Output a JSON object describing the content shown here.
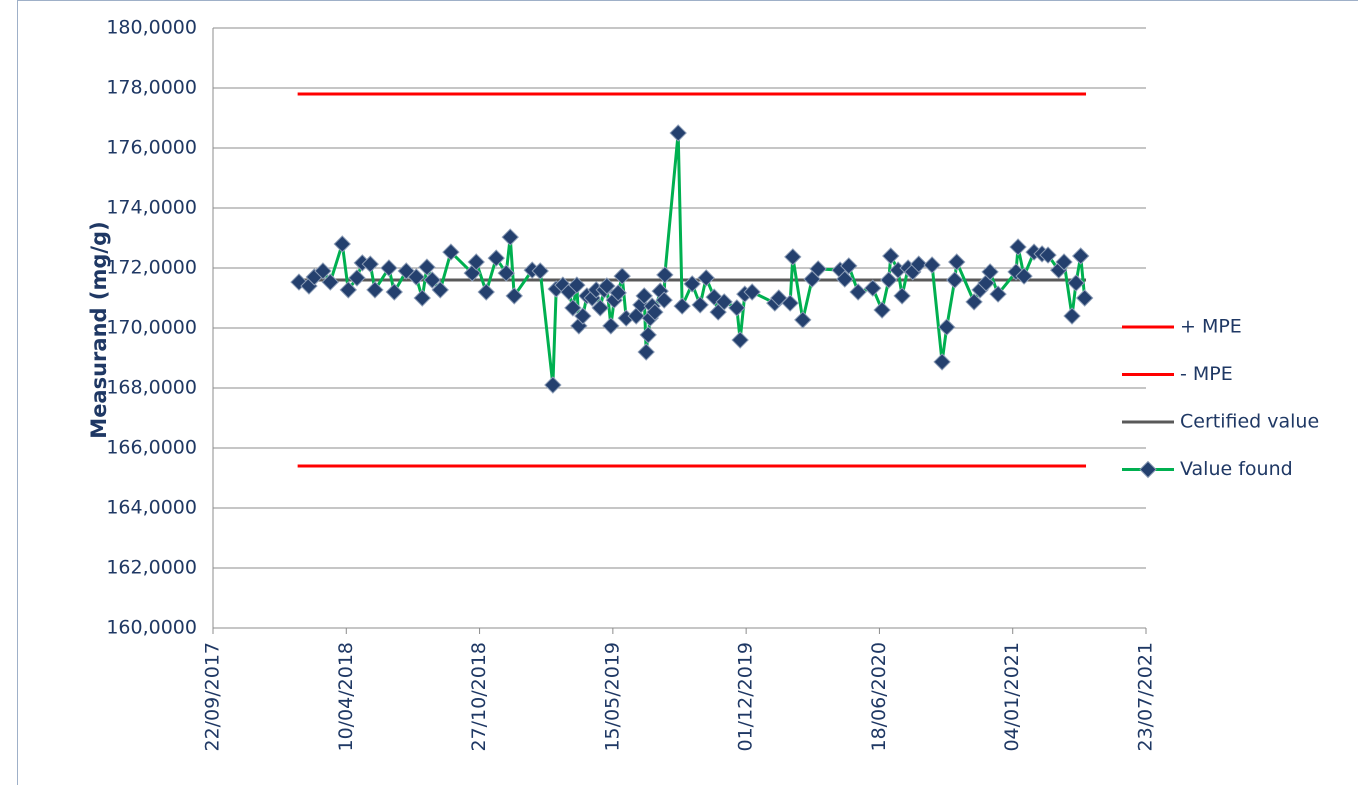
{
  "chart_data": {
    "type": "line",
    "y_label": "Measurand (mg/g)",
    "ylim": [
      160,
      180
    ],
    "yticks": [
      {
        "value": 160,
        "label": "160,0000"
      },
      {
        "value": 162,
        "label": "162,0000"
      },
      {
        "value": 164,
        "label": "164,0000"
      },
      {
        "value": 166,
        "label": "166,0000"
      },
      {
        "value": 168,
        "label": "168,0000"
      },
      {
        "value": 170,
        "label": "170,0000"
      },
      {
        "value": 172,
        "label": "172,0000"
      },
      {
        "value": 174,
        "label": "174,0000"
      },
      {
        "value": 176,
        "label": "176,0000"
      },
      {
        "value": 178,
        "label": "178,0000"
      },
      {
        "value": 180,
        "label": "180,0000"
      }
    ],
    "xlim": [
      "2017-09-22",
      "2021-07-23"
    ],
    "xticks": [
      {
        "value": "2017-09-22",
        "label": "22/09/2017"
      },
      {
        "value": "2018-04-10",
        "label": "10/04/2018"
      },
      {
        "value": "2018-10-27",
        "label": "27/10/2018"
      },
      {
        "value": "2019-05-15",
        "label": "15/05/2019"
      },
      {
        "value": "2019-12-01",
        "label": "01/12/2019"
      },
      {
        "value": "2020-06-18",
        "label": "18/06/2020"
      },
      {
        "value": "2021-01-04",
        "label": "04/01/2021"
      },
      {
        "value": "2021-07-23",
        "label": "23/07/2021"
      }
    ],
    "grid": true,
    "legend": "right",
    "series": [
      {
        "name": "+ MPE",
        "color": "#ff0000",
        "x": [
          "2018-01-27",
          "2021-04-24"
        ],
        "values": [
          177.8,
          177.8
        ]
      },
      {
        "name": "- MPE",
        "color": "#ff0000",
        "x": [
          "2018-01-27",
          "2021-04-24"
        ],
        "values": [
          165.4,
          165.4
        ]
      },
      {
        "name": "Certified value",
        "color": "#595959",
        "x": [
          "2018-01-27",
          "2021-04-24"
        ],
        "values": [
          171.6,
          171.6
        ]
      },
      {
        "name": "Value found",
        "color": "#00b050",
        "marker_color": "#24406e",
        "marker": "diamond",
        "x": [
          "2018-01-29",
          "2018-02-13",
          "2018-02-21",
          "2018-03-06",
          "2018-03-17",
          "2018-04-04",
          "2018-04-13",
          "2018-04-26",
          "2018-05-04",
          "2018-05-16",
          "2018-05-23",
          "2018-06-13",
          "2018-06-21",
          "2018-07-09",
          "2018-07-24",
          "2018-08-02",
          "2018-08-09",
          "2018-08-17",
          "2018-08-29",
          "2018-09-14",
          "2018-10-16",
          "2018-10-22",
          "2018-11-06",
          "2018-11-21",
          "2018-12-06",
          "2018-12-12",
          "2018-12-18",
          "2019-01-14",
          "2019-01-26",
          "2019-02-14",
          "2019-02-19",
          "2019-03-01",
          "2019-03-10",
          "2019-03-16",
          "2019-03-22",
          "2019-03-25",
          "2019-03-31",
          "2019-04-06",
          "2019-04-14",
          "2019-04-20",
          "2019-04-26",
          "2019-05-02",
          "2019-05-06",
          "2019-05-12",
          "2019-05-17",
          "2019-05-23",
          "2019-05-29",
          "2019-06-04",
          "2019-06-19",
          "2019-06-26",
          "2019-07-01",
          "2019-07-04",
          "2019-07-07",
          "2019-07-10",
          "2019-07-13",
          "2019-07-17",
          "2019-07-25",
          "2019-07-31",
          "2019-08-01",
          "2019-08-21",
          "2019-08-27",
          "2019-09-11",
          "2019-09-23",
          "2019-10-02",
          "2019-10-14",
          "2019-10-20",
          "2019-10-29",
          "2019-11-17",
          "2019-11-22",
          "2019-11-29",
          "2019-12-10",
          "2020-01-13",
          "2020-01-19",
          "2020-02-05",
          "2020-02-09",
          "2020-02-24",
          "2020-03-09",
          "2020-03-18",
          "2020-04-20",
          "2020-04-27",
          "2020-05-03",
          "2020-05-17",
          "2020-06-08",
          "2020-06-22",
          "2020-07-02",
          "2020-07-05",
          "2020-07-16",
          "2020-07-22",
          "2020-07-31",
          "2020-08-07",
          "2020-08-16",
          "2020-09-05",
          "2020-09-20",
          "2020-09-27",
          "2020-10-09",
          "2020-10-12",
          "2020-11-07",
          "2020-11-16",
          "2020-11-25",
          "2020-12-01",
          "2020-12-13",
          "2021-01-09",
          "2021-01-12",
          "2021-01-21",
          "2021-02-05",
          "2021-02-17",
          "2021-02-26",
          "2021-03-14",
          "2021-03-22",
          "2021-04-03",
          "2021-04-09",
          "2021-04-16",
          "2021-04-22"
        ],
        "values": [
          171.53,
          171.4,
          171.7,
          171.9,
          171.53,
          172.8,
          171.27,
          171.67,
          172.17,
          172.13,
          171.27,
          172.0,
          171.2,
          171.9,
          171.7,
          171.0,
          172.03,
          171.6,
          171.27,
          172.53,
          171.83,
          172.2,
          171.2,
          172.33,
          171.83,
          173.03,
          171.07,
          171.93,
          171.9,
          168.1,
          171.3,
          171.43,
          171.2,
          170.67,
          171.43,
          170.07,
          170.4,
          171.07,
          171.0,
          171.27,
          170.67,
          171.27,
          171.4,
          170.07,
          170.93,
          171.17,
          171.73,
          170.33,
          170.4,
          170.77,
          171.07,
          169.2,
          169.77,
          170.33,
          170.73,
          170.53,
          171.23,
          170.93,
          171.77,
          176.5,
          170.73,
          171.47,
          170.77,
          171.67,
          171.03,
          170.53,
          170.87,
          170.67,
          169.6,
          171.13,
          171.2,
          170.83,
          171.0,
          170.83,
          172.37,
          170.27,
          171.63,
          171.97,
          171.93,
          171.63,
          172.07,
          171.2,
          171.33,
          170.6,
          171.6,
          172.4,
          171.93,
          171.07,
          172.0,
          171.87,
          172.13,
          172.1,
          168.87,
          170.03,
          171.6,
          172.2,
          170.87,
          171.27,
          171.5,
          171.87,
          171.13,
          171.87,
          172.7,
          171.73,
          172.53,
          172.47,
          172.43,
          171.93,
          172.2,
          170.4,
          171.5,
          172.4,
          171.0
        ]
      }
    ]
  }
}
